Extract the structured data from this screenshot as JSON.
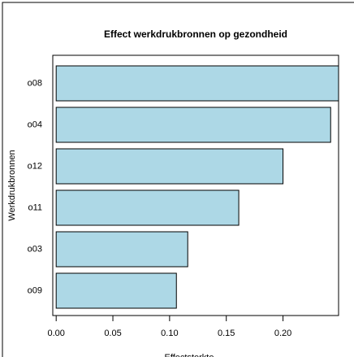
{
  "chart_data": {
    "type": "barh",
    "title": "Effect werkdrukbronnen op gezondheid",
    "x_label": "Effectsterkte",
    "y_label": "Werkdrukbronnen",
    "categories": [
      "o08",
      "o04",
      "o12",
      "o11",
      "o03",
      "o09"
    ],
    "values": [
      0.249,
      0.242,
      0.2,
      0.161,
      0.116,
      0.106
    ],
    "color": "#add8e6",
    "xlim": [
      -0.003,
      0.249
    ],
    "xticks": [
      {
        "value": 0,
        "label": "0.00"
      },
      {
        "value": 0.05,
        "label": "0.05"
      },
      {
        "value": 0.1,
        "label": "0.10"
      },
      {
        "value": 0.15,
        "label": "0.15"
      },
      {
        "value": 0.2,
        "label": "0.20"
      }
    ]
  }
}
